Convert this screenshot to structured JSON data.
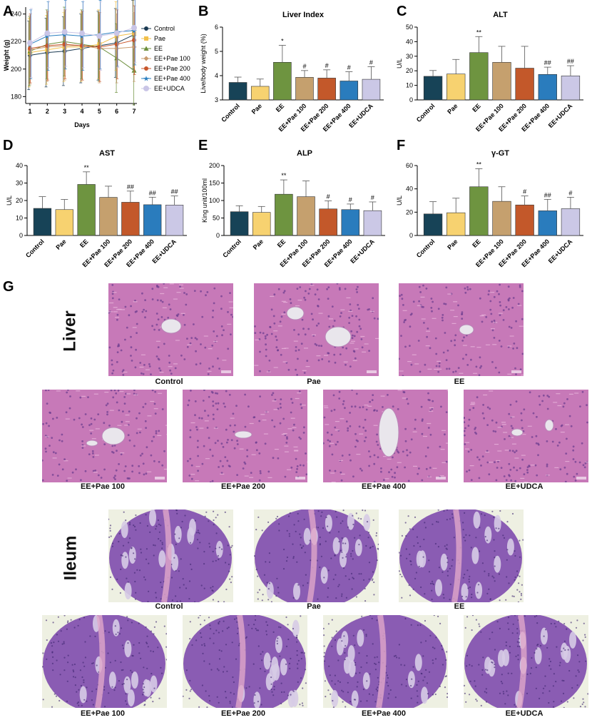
{
  "chart_data": [
    {
      "panel": "A",
      "type": "line",
      "title": "",
      "xlabel": "Days",
      "ylabel": "Weight (g)",
      "x": [
        1,
        2,
        3,
        4,
        5,
        6,
        7
      ],
      "xticks": [
        "1",
        "2",
        "3",
        "4",
        "5",
        "6",
        "7"
      ],
      "yticks": [
        "180",
        "200",
        "220",
        "240"
      ],
      "ylim": [
        175,
        245
      ],
      "legend": "top-right",
      "series": [
        {
          "name": "Control",
          "color": "#1a3a52",
          "marker": "circle",
          "values": [
            210,
            212,
            213,
            215,
            217,
            219,
            225
          ],
          "err": [
            25,
            25,
            25,
            25,
            25,
            25,
            25
          ]
        },
        {
          "name": "Pae",
          "color": "#f2c04b",
          "marker": "square",
          "values": [
            212,
            214,
            216,
            216,
            218,
            224,
            226
          ],
          "err": [
            25,
            25,
            25,
            25,
            25,
            25,
            25
          ]
        },
        {
          "name": "EE",
          "color": "#6b8e3a",
          "marker": "triangle",
          "values": [
            213,
            218,
            220,
            218,
            216,
            208,
            199
          ],
          "err": [
            25,
            25,
            25,
            25,
            25,
            25,
            25
          ]
        },
        {
          "name": "EE+Pae 100",
          "color": "#c89b6e",
          "marker": "diamond",
          "values": [
            214,
            216,
            217,
            217,
            215,
            215,
            216
          ],
          "err": [
            25,
            25,
            25,
            25,
            25,
            25,
            25
          ]
        },
        {
          "name": "EE+Pae 200",
          "color": "#c8562b",
          "marker": "circle",
          "values": [
            215,
            217,
            218,
            217,
            216,
            218,
            221
          ],
          "err": [
            25,
            25,
            25,
            25,
            25,
            25,
            25
          ]
        },
        {
          "name": "EE+Pae 400",
          "color": "#2a7fc0",
          "marker": "star",
          "values": [
            218,
            224,
            225,
            224,
            225,
            227,
            228
          ],
          "err": [
            25,
            25,
            25,
            25,
            25,
            25,
            25
          ]
        },
        {
          "name": "EE+UDCA",
          "color": "#c9c5e6",
          "marker": "circle",
          "values": [
            219,
            226,
            227,
            226,
            224,
            226,
            230
          ],
          "err": [
            25,
            25,
            25,
            25,
            25,
            25,
            25
          ]
        }
      ]
    },
    {
      "panel": "B",
      "type": "bar",
      "title": "Liver Index",
      "ylabel": "Live/body weight (%)",
      "categories": [
        "Control",
        "Pae",
        "EE",
        "EE+Pae 100",
        "EE+Pae 200",
        "EE+Pae 400",
        "EE+UDCA"
      ],
      "values": [
        3.72,
        3.56,
        4.55,
        3.93,
        3.9,
        3.78,
        3.85
      ],
      "err": [
        0.22,
        0.3,
        0.7,
        0.28,
        0.34,
        0.38,
        0.52
      ],
      "sig": [
        "",
        "",
        "*",
        "#",
        "#",
        "#",
        "#"
      ],
      "ylim": [
        3,
        6
      ],
      "yticks": [
        "3",
        "4",
        "5",
        "6"
      ]
    },
    {
      "panel": "C",
      "type": "bar",
      "title": "ALT",
      "ylabel": "U/L",
      "categories": [
        "Control",
        "Pae",
        "EE",
        "EE+Pae 100",
        "EE+Pae 200",
        "EE+Pae 400",
        "EE+UDCA"
      ],
      "values": [
        16.2,
        17.8,
        32.5,
        25.8,
        21.8,
        17.5,
        16.5
      ],
      "err": [
        4.0,
        10.0,
        11.0,
        11.0,
        15.0,
        5.0,
        7.0
      ],
      "sig": [
        "",
        "",
        "**",
        "",
        "",
        "##",
        "##"
      ],
      "ylim": [
        0,
        50
      ],
      "yticks": [
        "0",
        "10",
        "20",
        "30",
        "40",
        "50"
      ]
    },
    {
      "panel": "D",
      "type": "bar",
      "title": "AST",
      "ylabel": "U/L",
      "categories": [
        "Control",
        "Pae",
        "EE",
        "EE+Pae 100",
        "EE+Pae 200",
        "EE+Pae 400",
        "EE+UDCA"
      ],
      "values": [
        15.5,
        14.8,
        29.2,
        21.8,
        19.0,
        17.6,
        17.4
      ],
      "err": [
        6.7,
        5.8,
        7.2,
        6.4,
        6.4,
        4.3,
        5.2
      ],
      "sig": [
        "",
        "",
        "**",
        "",
        "##",
        "##",
        "##"
      ],
      "ylim": [
        0,
        40
      ],
      "yticks": [
        "0",
        "10",
        "20",
        "30",
        "40"
      ]
    },
    {
      "panel": "E",
      "type": "bar",
      "title": "ALP",
      "ylabel": "King unit/100ml",
      "categories": [
        "Control",
        "Pae",
        "EE",
        "EE+Pae 100",
        "EE+Pae 200",
        "EE+Pae 400",
        "EE+UDCA"
      ],
      "values": [
        68,
        66,
        118,
        111,
        76,
        74,
        71
      ],
      "err": [
        17,
        17,
        41,
        45,
        23,
        16,
        25
      ],
      "sig": [
        "",
        "",
        "**",
        "",
        "#",
        "#",
        "#"
      ],
      "ylim": [
        0,
        200
      ],
      "yticks": [
        "0",
        "50",
        "100",
        "150",
        "200"
      ]
    },
    {
      "panel": "F",
      "type": "bar",
      "title": "γ-GT",
      "ylabel": "U/L",
      "categories": [
        "Control",
        "Pae",
        "EE",
        "EE+Pae 100",
        "EE+Pae 200",
        "EE+Pae 400",
        "EE+UDCA"
      ],
      "values": [
        18.5,
        19.5,
        41.8,
        29.3,
        26.2,
        21.2,
        23.0
      ],
      "err": [
        10.5,
        12.5,
        15.5,
        12.5,
        7.7,
        9.8,
        9.8
      ],
      "sig": [
        "",
        "",
        "**",
        "",
        "#",
        "##",
        "#"
      ],
      "ylim": [
        0,
        60
      ],
      "yticks": [
        "0",
        "20",
        "40",
        "60"
      ]
    }
  ],
  "bar_colors": [
    "#174357",
    "#f7d270",
    "#6e9440",
    "#c5a06e",
    "#c3582a",
    "#2a7cbd",
    "#cbc8e6"
  ],
  "panel_labels": [
    "A",
    "B",
    "C",
    "D",
    "E",
    "F",
    "G"
  ],
  "histology": {
    "liver_label": "Liver",
    "ileum_label": "Ileum",
    "liver_captions": [
      "Control",
      "Pae",
      "EE",
      "EE+Pae 100",
      "EE+Pae 200",
      "EE+Pae 400",
      "EE+UDCA"
    ],
    "ileum_captions": [
      "Control",
      "Pae",
      "EE",
      "EE+Pae 100",
      "EE+Pae 200",
      "EE+Pae 400",
      "EE+UDCA"
    ],
    "liver_color": "#c779b8",
    "ileum_color": "#8a5cb3",
    "background_color": "#eef0e2"
  }
}
